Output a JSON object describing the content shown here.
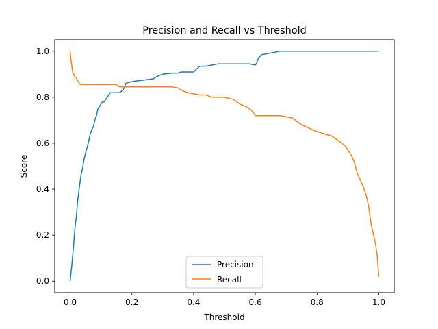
{
  "chart_data": {
    "type": "line",
    "title": "Precision and Recall vs Threshold",
    "xlabel": "Threshold",
    "ylabel": "Score",
    "xlim": [
      -0.05,
      1.05
    ],
    "ylim": [
      -0.05,
      1.05
    ],
    "xticks": [
      0.0,
      0.2,
      0.4,
      0.6,
      0.8,
      1.0
    ],
    "xtick_labels": [
      "0.0",
      "0.2",
      "0.4",
      "0.6",
      "0.8",
      "1.0"
    ],
    "yticks": [
      0.0,
      0.2,
      0.4,
      0.6,
      0.8,
      1.0
    ],
    "ytick_labels": [
      "0.0",
      "0.2",
      "0.4",
      "0.6",
      "0.8",
      "1.0"
    ],
    "grid": false,
    "legend_position": "lower-center",
    "series": [
      {
        "name": "Precision",
        "color": "#1f77b4",
        "x": [
          0.0,
          0.003,
          0.006,
          0.01,
          0.013,
          0.016,
          0.02,
          0.023,
          0.026,
          0.03,
          0.035,
          0.04,
          0.045,
          0.05,
          0.055,
          0.06,
          0.065,
          0.07,
          0.075,
          0.08,
          0.085,
          0.09,
          0.095,
          0.1,
          0.105,
          0.11,
          0.12,
          0.13,
          0.14,
          0.15,
          0.16,
          0.17,
          0.175,
          0.18,
          0.19,
          0.21,
          0.24,
          0.27,
          0.28,
          0.3,
          0.33,
          0.35,
          0.36,
          0.4,
          0.42,
          0.44,
          0.46,
          0.48,
          0.5,
          0.54,
          0.58,
          0.6,
          0.605,
          0.61,
          0.62,
          0.64,
          0.66,
          0.68,
          0.7,
          0.75,
          0.8,
          0.85,
          0.9,
          0.95,
          1.0
        ],
        "y": [
          0.0,
          0.04,
          0.08,
          0.14,
          0.19,
          0.24,
          0.28,
          0.33,
          0.37,
          0.41,
          0.46,
          0.49,
          0.53,
          0.56,
          0.58,
          0.61,
          0.64,
          0.66,
          0.67,
          0.7,
          0.72,
          0.75,
          0.76,
          0.77,
          0.78,
          0.78,
          0.8,
          0.82,
          0.82,
          0.82,
          0.82,
          0.83,
          0.84,
          0.86,
          0.865,
          0.87,
          0.875,
          0.88,
          0.89,
          0.9,
          0.905,
          0.905,
          0.91,
          0.91,
          0.935,
          0.935,
          0.94,
          0.945,
          0.945,
          0.945,
          0.945,
          0.94,
          0.95,
          0.97,
          0.985,
          0.99,
          0.995,
          1.0,
          1.0,
          1.0,
          1.0,
          1.0,
          1.0,
          1.0,
          1.0
        ]
      },
      {
        "name": "Recall",
        "color": "#ff7f0e",
        "x": [
          0.0,
          0.002,
          0.004,
          0.008,
          0.015,
          0.02,
          0.025,
          0.03,
          0.035,
          0.04,
          0.06,
          0.08,
          0.1,
          0.12,
          0.15,
          0.16,
          0.2,
          0.25,
          0.3,
          0.33,
          0.35,
          0.36,
          0.38,
          0.4,
          0.42,
          0.44,
          0.46,
          0.5,
          0.53,
          0.55,
          0.57,
          0.59,
          0.6,
          0.61,
          0.65,
          0.68,
          0.7,
          0.72,
          0.73,
          0.75,
          0.8,
          0.85,
          0.87,
          0.89,
          0.9,
          0.91,
          0.92,
          0.93,
          0.94,
          0.95,
          0.96,
          0.965,
          0.97,
          0.975,
          0.98,
          0.985,
          0.99,
          0.995,
          1.0
        ],
        "y": [
          1.0,
          0.97,
          0.95,
          0.91,
          0.89,
          0.885,
          0.87,
          0.86,
          0.855,
          0.855,
          0.855,
          0.855,
          0.855,
          0.855,
          0.855,
          0.845,
          0.845,
          0.845,
          0.845,
          0.845,
          0.84,
          0.83,
          0.82,
          0.815,
          0.81,
          0.81,
          0.8,
          0.8,
          0.79,
          0.77,
          0.76,
          0.74,
          0.72,
          0.72,
          0.72,
          0.72,
          0.715,
          0.71,
          0.7,
          0.68,
          0.65,
          0.63,
          0.61,
          0.59,
          0.57,
          0.55,
          0.52,
          0.47,
          0.44,
          0.41,
          0.37,
          0.34,
          0.3,
          0.25,
          0.22,
          0.19,
          0.16,
          0.11,
          0.02
        ]
      }
    ]
  }
}
